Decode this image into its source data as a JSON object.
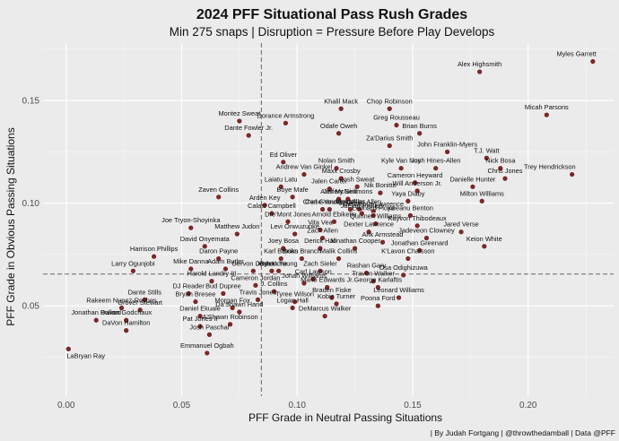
{
  "chart_data": {
    "type": "scatter",
    "title": "2024 PFF Situational Pass Rush Grades",
    "subtitle": "Min 275 snaps | Disruption =  Pressure Before Play Develops",
    "xlabel": "PFF Grade in Neutral Passing Situations",
    "ylabel": "PFF Grade in Obvious Passing Situations",
    "caption": "| By Judah Fortgang | @throwthedamball | Data @PFF",
    "xlim": [
      -0.01,
      0.237
    ],
    "ylim": [
      0.006,
      0.178
    ],
    "x_ticks": [
      "0.00",
      "0.05",
      "0.10",
      "0.15",
      "0.20"
    ],
    "x_tick_values": [
      0,
      0.05,
      0.1,
      0.15,
      0.2
    ],
    "y_ticks": [
      "0.05",
      "0.10",
      "0.15"
    ],
    "y_tick_values": [
      0.05,
      0.1,
      0.15
    ],
    "grid": true,
    "reference_lines": {
      "x_mean": 0.0845,
      "y_mean": 0.0655
    },
    "colors": {
      "panel": "#ebebeb",
      "grid": "#ffffff",
      "refline": "#666666",
      "point": "#7a2a2a"
    },
    "points": [
      {
        "name": "Myles Garrett",
        "x": 0.228,
        "y": 0.169
      },
      {
        "name": "Alex Highsmith",
        "x": 0.179,
        "y": 0.164
      },
      {
        "name": "Micah Parsons",
        "x": 0.208,
        "y": 0.143
      },
      {
        "name": "Khalil Mack",
        "x": 0.119,
        "y": 0.146
      },
      {
        "name": "Chop Robinson",
        "x": 0.14,
        "y": 0.146
      },
      {
        "name": "Montez Sweat",
        "x": 0.075,
        "y": 0.14
      },
      {
        "name": "Dorance Armstrong",
        "x": 0.095,
        "y": 0.139
      },
      {
        "name": "Greg Rousseau",
        "x": 0.143,
        "y": 0.138
      },
      {
        "name": "Brian Burns",
        "x": 0.153,
        "y": 0.134
      },
      {
        "name": "Odafe Oweh",
        "x": 0.118,
        "y": 0.134
      },
      {
        "name": "Dante Fowler Jr.",
        "x": 0.079,
        "y": 0.133
      },
      {
        "name": "Za'Darius Smith",
        "x": 0.14,
        "y": 0.128
      },
      {
        "name": "John Franklin-Myers",
        "x": 0.165,
        "y": 0.125
      },
      {
        "name": "T.J. Watt",
        "x": 0.182,
        "y": 0.122
      },
      {
        "name": "Ed Oliver",
        "x": 0.094,
        "y": 0.12
      },
      {
        "name": "Nick Bosa",
        "x": 0.188,
        "y": 0.117
      },
      {
        "name": "Josh Hines-Allen",
        "x": 0.16,
        "y": 0.117
      },
      {
        "name": "Kyle Van Noy",
        "x": 0.145,
        "y": 0.117
      },
      {
        "name": "Nolan Smith",
        "x": 0.117,
        "y": 0.117
      },
      {
        "name": "Trey Hendrickson",
        "x": 0.219,
        "y": 0.114
      },
      {
        "name": "Andrew Van Ginkel",
        "x": 0.103,
        "y": 0.114
      },
      {
        "name": "Chris Jones",
        "x": 0.19,
        "y": 0.112
      },
      {
        "name": "Maxx Crosby",
        "x": 0.119,
        "y": 0.112
      },
      {
        "name": "Cameron Heyward",
        "x": 0.151,
        "y": 0.11
      },
      {
        "name": "Danielle Hunter",
        "x": 0.176,
        "y": 0.108
      },
      {
        "name": "Laiatu Latu",
        "x": 0.093,
        "y": 0.108
      },
      {
        "name": "Jalen Carter",
        "x": 0.114,
        "y": 0.107
      },
      {
        "name": "Josh Sweat",
        "x": 0.126,
        "y": 0.108
      },
      {
        "name": "Will Anderson Jr.",
        "x": 0.152,
        "y": 0.106
      },
      {
        "name": "Nik Bonitto",
        "x": 0.136,
        "y": 0.105
      },
      {
        "name": "Zaven Collins",
        "x": 0.066,
        "y": 0.103
      },
      {
        "name": "Boye Mafe",
        "x": 0.098,
        "y": 0.103
      },
      {
        "name": "Alim McNeill",
        "x": 0.118,
        "y": 0.102
      },
      {
        "name": "Jeffery Simmons",
        "x": 0.122,
        "y": 0.102
      },
      {
        "name": "Yaya Diaby",
        "x": 0.148,
        "y": 0.101
      },
      {
        "name": "Milton Williams",
        "x": 0.18,
        "y": 0.101
      },
      {
        "name": "Arden Key",
        "x": 0.086,
        "y": 0.099
      },
      {
        "name": "Chase Young",
        "x": 0.111,
        "y": 0.097
      },
      {
        "name": "Carl Granderson",
        "x": 0.114,
        "y": 0.097
      },
      {
        "name": "Von Miller",
        "x": 0.123,
        "y": 0.097
      },
      {
        "name": "Jonathan Allen",
        "x": 0.127,
        "y": 0.097
      },
      {
        "name": "DeMarcus Lawrence",
        "x": 0.133,
        "y": 0.096
      },
      {
        "name": "Calais Campbell",
        "x": 0.089,
        "y": 0.095
      },
      {
        "name": "Jaelan Phillips",
        "x": 0.128,
        "y": 0.095
      },
      {
        "name": "Leonard Floyd",
        "x": 0.133,
        "y": 0.094
      },
      {
        "name": "Keeanu Benton",
        "x": 0.149,
        "y": 0.094
      },
      {
        "name": "Dre'Mont Jones",
        "x": 0.096,
        "y": 0.091
      },
      {
        "name": "Arnold Ebiketie",
        "x": 0.116,
        "y": 0.091
      },
      {
        "name": "Quinnen Williams",
        "x": 0.134,
        "y": 0.09
      },
      {
        "name": "Kayvon Thibodeaux",
        "x": 0.152,
        "y": 0.089
      },
      {
        "name": "Joe Tryon-Shoyinka",
        "x": 0.054,
        "y": 0.088
      },
      {
        "name": "Vita Vea",
        "x": 0.11,
        "y": 0.087
      },
      {
        "name": "Dexter Lawrence",
        "x": 0.131,
        "y": 0.086
      },
      {
        "name": "Jared Verse",
        "x": 0.171,
        "y": 0.086
      },
      {
        "name": "Matthew Judon",
        "x": 0.074,
        "y": 0.085
      },
      {
        "name": "Levi Onwuzurike",
        "x": 0.099,
        "y": 0.085
      },
      {
        "name": "Zach Allen",
        "x": 0.111,
        "y": 0.083
      },
      {
        "name": "Jadeveon Clowney",
        "x": 0.156,
        "y": 0.083
      },
      {
        "name": "Arik Armstead",
        "x": 0.137,
        "y": 0.081
      },
      {
        "name": "Keion White",
        "x": 0.181,
        "y": 0.079
      },
      {
        "name": "David Onyemata",
        "x": 0.06,
        "y": 0.079
      },
      {
        "name": "Jonathan Cooper",
        "x": 0.125,
        "y": 0.078
      },
      {
        "name": "Jonathan Greenard",
        "x": 0.153,
        "y": 0.077
      },
      {
        "name": "Joey Bosa",
        "x": 0.094,
        "y": 0.078
      },
      {
        "name": "Derick Hall",
        "x": 0.11,
        "y": 0.078
      },
      {
        "name": "Harrison Phillips",
        "x": 0.038,
        "y": 0.074
      },
      {
        "name": "Daron Payne",
        "x": 0.066,
        "y": 0.073
      },
      {
        "name": "Karl Brooks",
        "x": 0.093,
        "y": 0.073
      },
      {
        "name": "Brian Branch",
        "x": 0.102,
        "y": 0.073
      },
      {
        "name": "Malik Collins",
        "x": 0.118,
        "y": 0.073
      },
      {
        "name": "K'Lavon Chaisson",
        "x": 0.148,
        "y": 0.073
      },
      {
        "name": "Mike Danna",
        "x": 0.054,
        "y": 0.068
      },
      {
        "name": "Adam Butler",
        "x": 0.069,
        "y": 0.068
      },
      {
        "name": "Gervon Dexter",
        "x": 0.081,
        "y": 0.067
      },
      {
        "name": "Byron Young",
        "x": 0.092,
        "y": 0.067
      },
      {
        "name": "Josh Uche",
        "x": 0.089,
        "y": 0.067
      },
      {
        "name": "Zach Sieler",
        "x": 0.11,
        "y": 0.067
      },
      {
        "name": "Rashan Gary",
        "x": 0.13,
        "y": 0.066
      },
      {
        "name": "Osa Odighizuwa",
        "x": 0.146,
        "y": 0.065
      },
      {
        "name": "Larry Ogunjobi",
        "x": 0.029,
        "y": 0.067
      },
      {
        "name": "Carl Lawson",
        "x": 0.107,
        "y": 0.063
      },
      {
        "name": "Travon Walker",
        "x": 0.133,
        "y": 0.062
      },
      {
        "name": "Harold Landry III",
        "x": 0.063,
        "y": 0.062
      },
      {
        "name": "Cameron Jordan",
        "x": 0.082,
        "y": 0.06
      },
      {
        "name": "Jonah Williams",
        "x": 0.103,
        "y": 0.061
      },
      {
        "name": "Mario Edwards Jr.",
        "x": 0.113,
        "y": 0.059
      },
      {
        "name": "George Karlaftis",
        "x": 0.135,
        "y": 0.059
      },
      {
        "name": "DJ Reader",
        "x": 0.053,
        "y": 0.056
      },
      {
        "name": "Bud Dupree",
        "x": 0.068,
        "y": 0.056
      },
      {
        "name": "J. Collins",
        "x": 0.09,
        "y": 0.057
      },
      {
        "name": "Braden Fiske",
        "x": 0.115,
        "y": 0.054
      },
      {
        "name": "Leonard Williams",
        "x": 0.144,
        "y": 0.054
      },
      {
        "name": "Dante Stills",
        "x": 0.034,
        "y": 0.053
      },
      {
        "name": "Travis Jones",
        "x": 0.083,
        "y": 0.053
      },
      {
        "name": "Tyree Wilson",
        "x": 0.099,
        "y": 0.052
      },
      {
        "name": "Bryan Bresee",
        "x": 0.056,
        "y": 0.052
      },
      {
        "name": "Kobie Turner",
        "x": 0.117,
        "y": 0.051
      },
      {
        "name": "Poona Ford",
        "x": 0.135,
        "y": 0.05
      },
      {
        "name": "Rakeem Nunez-Roches",
        "x": 0.024,
        "y": 0.049
      },
      {
        "name": "Grover Stewart",
        "x": 0.032,
        "y": 0.048
      },
      {
        "name": "Morgan Fox",
        "x": 0.072,
        "y": 0.049
      },
      {
        "name": "Logan Hall",
        "x": 0.098,
        "y": 0.049
      },
      {
        "name": "DeMarcus Walker",
        "x": 0.112,
        "y": 0.045
      },
      {
        "name": "Daniel Ekuale",
        "x": 0.058,
        "y": 0.045
      },
      {
        "name": "Da'Shawn Hand",
        "x": 0.075,
        "y": 0.047
      },
      {
        "name": "Jonathan Bullard",
        "x": 0.013,
        "y": 0.043
      },
      {
        "name": "Davon Godchaux",
        "x": 0.026,
        "y": 0.043
      },
      {
        "name": "Pat Jones II",
        "x": 0.058,
        "y": 0.04
      },
      {
        "name": "A'Shawn Robinson",
        "x": 0.071,
        "y": 0.041
      },
      {
        "name": "DaVon Hamilton",
        "x": 0.026,
        "y": 0.038
      },
      {
        "name": "Josh Paschal",
        "x": 0.062,
        "y": 0.036
      },
      {
        "name": "LaBryan Ray",
        "x": 0.001,
        "y": 0.029
      },
      {
        "name": "Emmanuel Ogbah",
        "x": 0.061,
        "y": 0.027
      }
    ]
  }
}
